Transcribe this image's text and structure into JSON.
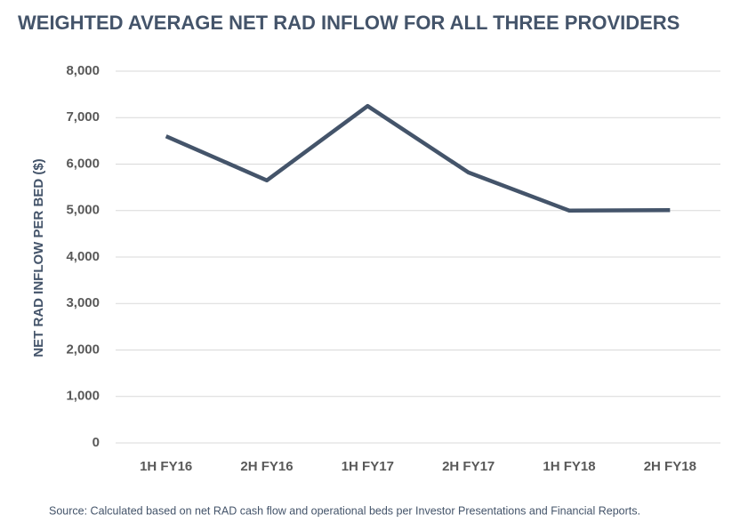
{
  "chart_data": {
    "type": "line",
    "title": "WEIGHTED AVERAGE NET RAD INFLOW FOR ALL THREE PROVIDERS",
    "y_label": "NET RAD INFLOW PER BED ($)",
    "source": "Source: Calculated based on net RAD cash flow and operational beds per Investor Presentations and Financial Reports.",
    "categories": [
      "1H FY16",
      "2H FY16",
      "1H FY17",
      "2H FY17",
      "1H FY18",
      "2H FY18"
    ],
    "values": [
      6600,
      5650,
      7250,
      5820,
      5000,
      5010
    ],
    "color": "#44546a",
    "ylim": [
      0,
      8000
    ],
    "yticks": [
      0,
      {
        "value": 1000,
        "label": "1,000"
      },
      {
        "value": 2000,
        "label": "2,000"
      },
      {
        "value": 3000,
        "label": "3,000"
      },
      {
        "value": 4000,
        "label": "4,000"
      },
      {
        "value": 5000,
        "label": "5,000"
      },
      {
        "value": 6000,
        "label": "6,000"
      },
      {
        "value": 7000,
        "label": "7,000"
      },
      {
        "value": 8000,
        "label": "8,000"
      }
    ],
    "grid": true
  }
}
